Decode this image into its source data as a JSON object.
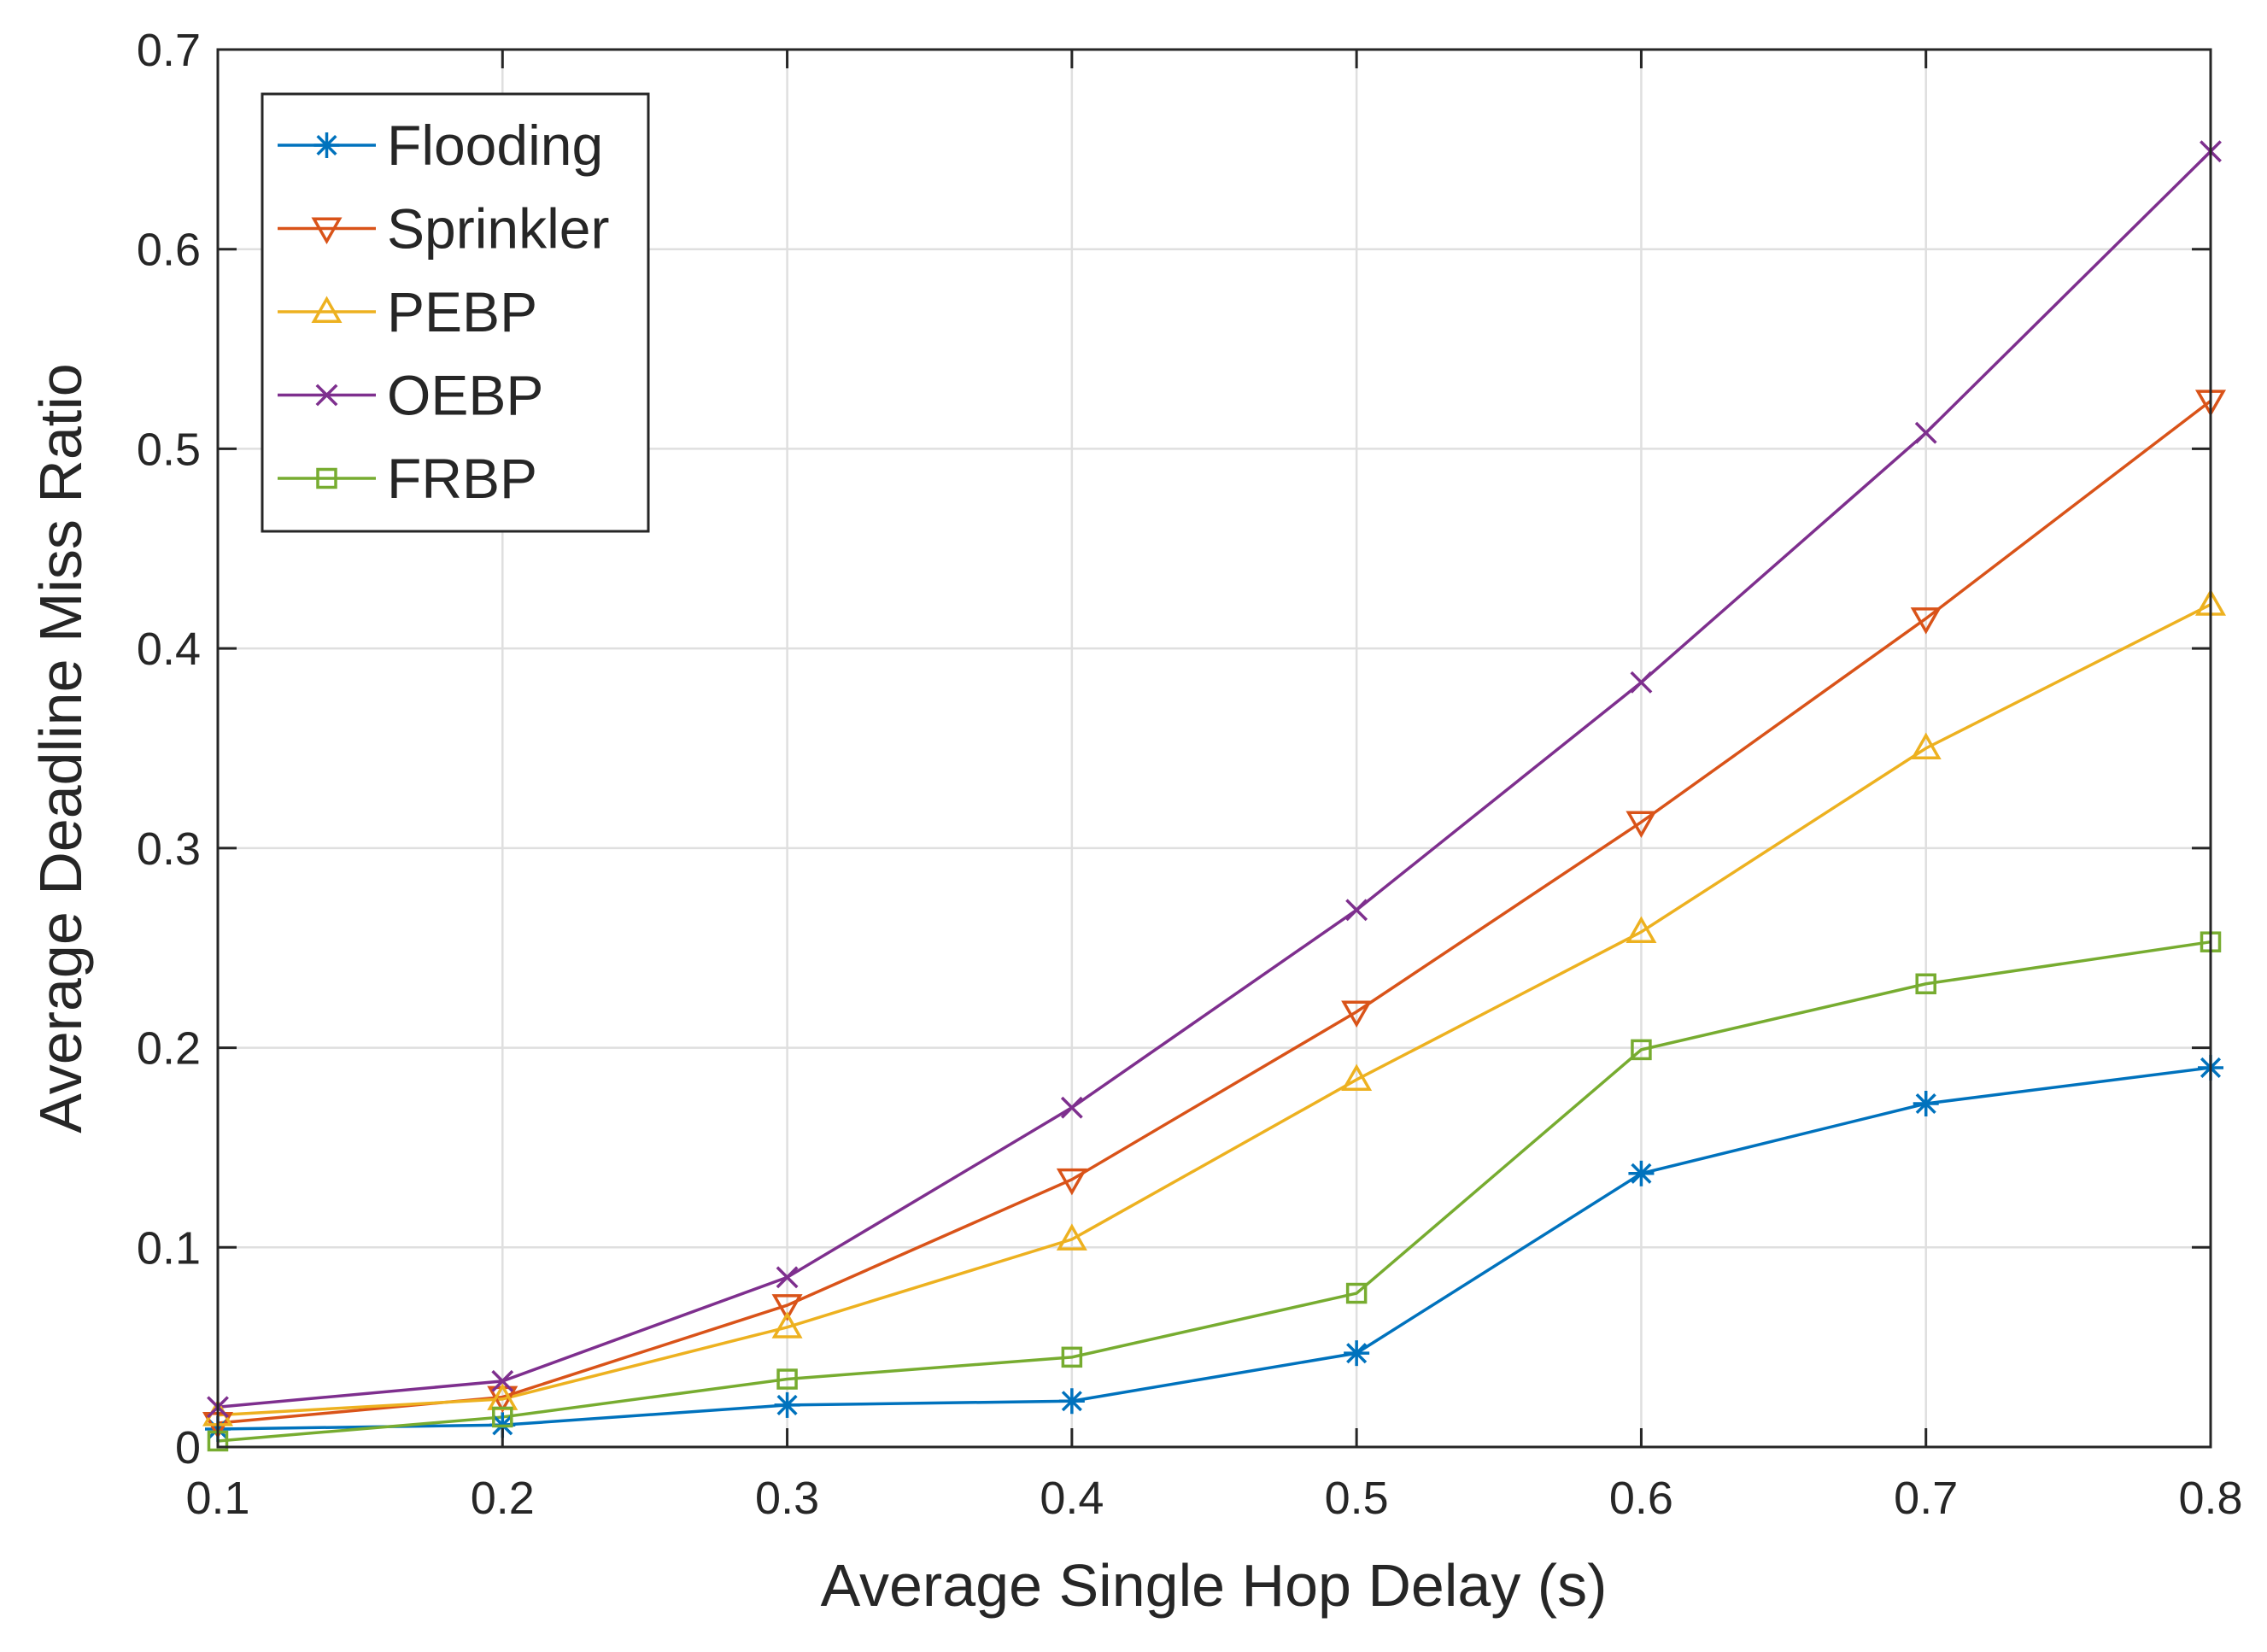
{
  "chart_data": {
    "type": "line",
    "title": "",
    "xlabel": "Average Single Hop Delay (s)",
    "ylabel": "Average Deadline Miss Ratio",
    "x": [
      0.1,
      0.2,
      0.3,
      0.4,
      0.5,
      0.6,
      0.7,
      0.8
    ],
    "xlim": [
      0.1,
      0.8
    ],
    "ylim": [
      0,
      0.7
    ],
    "xticks": [
      0.1,
      0.2,
      0.3,
      0.4,
      0.5,
      0.6,
      0.7,
      0.8
    ],
    "xtick_labels": [
      "0.1",
      "0.2",
      "0.3",
      "0.4",
      "0.5",
      "0.6",
      "0.7",
      "0.8"
    ],
    "yticks": [
      0,
      0.1,
      0.2,
      0.3,
      0.4,
      0.5,
      0.6,
      0.7
    ],
    "ytick_labels": [
      "0",
      "0.1",
      "0.2",
      "0.3",
      "0.4",
      "0.5",
      "0.6",
      "0.7"
    ],
    "grid": true,
    "legend_position": "top-left",
    "series": [
      {
        "name": "Flooding",
        "color": "#0072BD",
        "marker": "asterisk",
        "values": [
          0.009,
          0.011,
          0.021,
          0.023,
          0.047,
          0.137,
          0.172,
          0.19
        ]
      },
      {
        "name": "Sprinkler",
        "color": "#D95319",
        "marker": "triangle-down",
        "values": [
          0.012,
          0.025,
          0.071,
          0.134,
          0.218,
          0.313,
          0.415,
          0.524
        ]
      },
      {
        "name": "PEBP",
        "color": "#EDB120",
        "marker": "triangle-up",
        "values": [
          0.016,
          0.024,
          0.06,
          0.104,
          0.184,
          0.258,
          0.35,
          0.422
        ]
      },
      {
        "name": "OEBP",
        "color": "#7E2F8E",
        "marker": "x",
        "values": [
          0.02,
          0.033,
          0.085,
          0.17,
          0.269,
          0.383,
          0.508,
          0.649
        ]
      },
      {
        "name": "FRBP",
        "color": "#77AC30",
        "marker": "square",
        "values": [
          0.003,
          0.015,
          0.034,
          0.045,
          0.077,
          0.199,
          0.232,
          0.253
        ]
      }
    ]
  }
}
